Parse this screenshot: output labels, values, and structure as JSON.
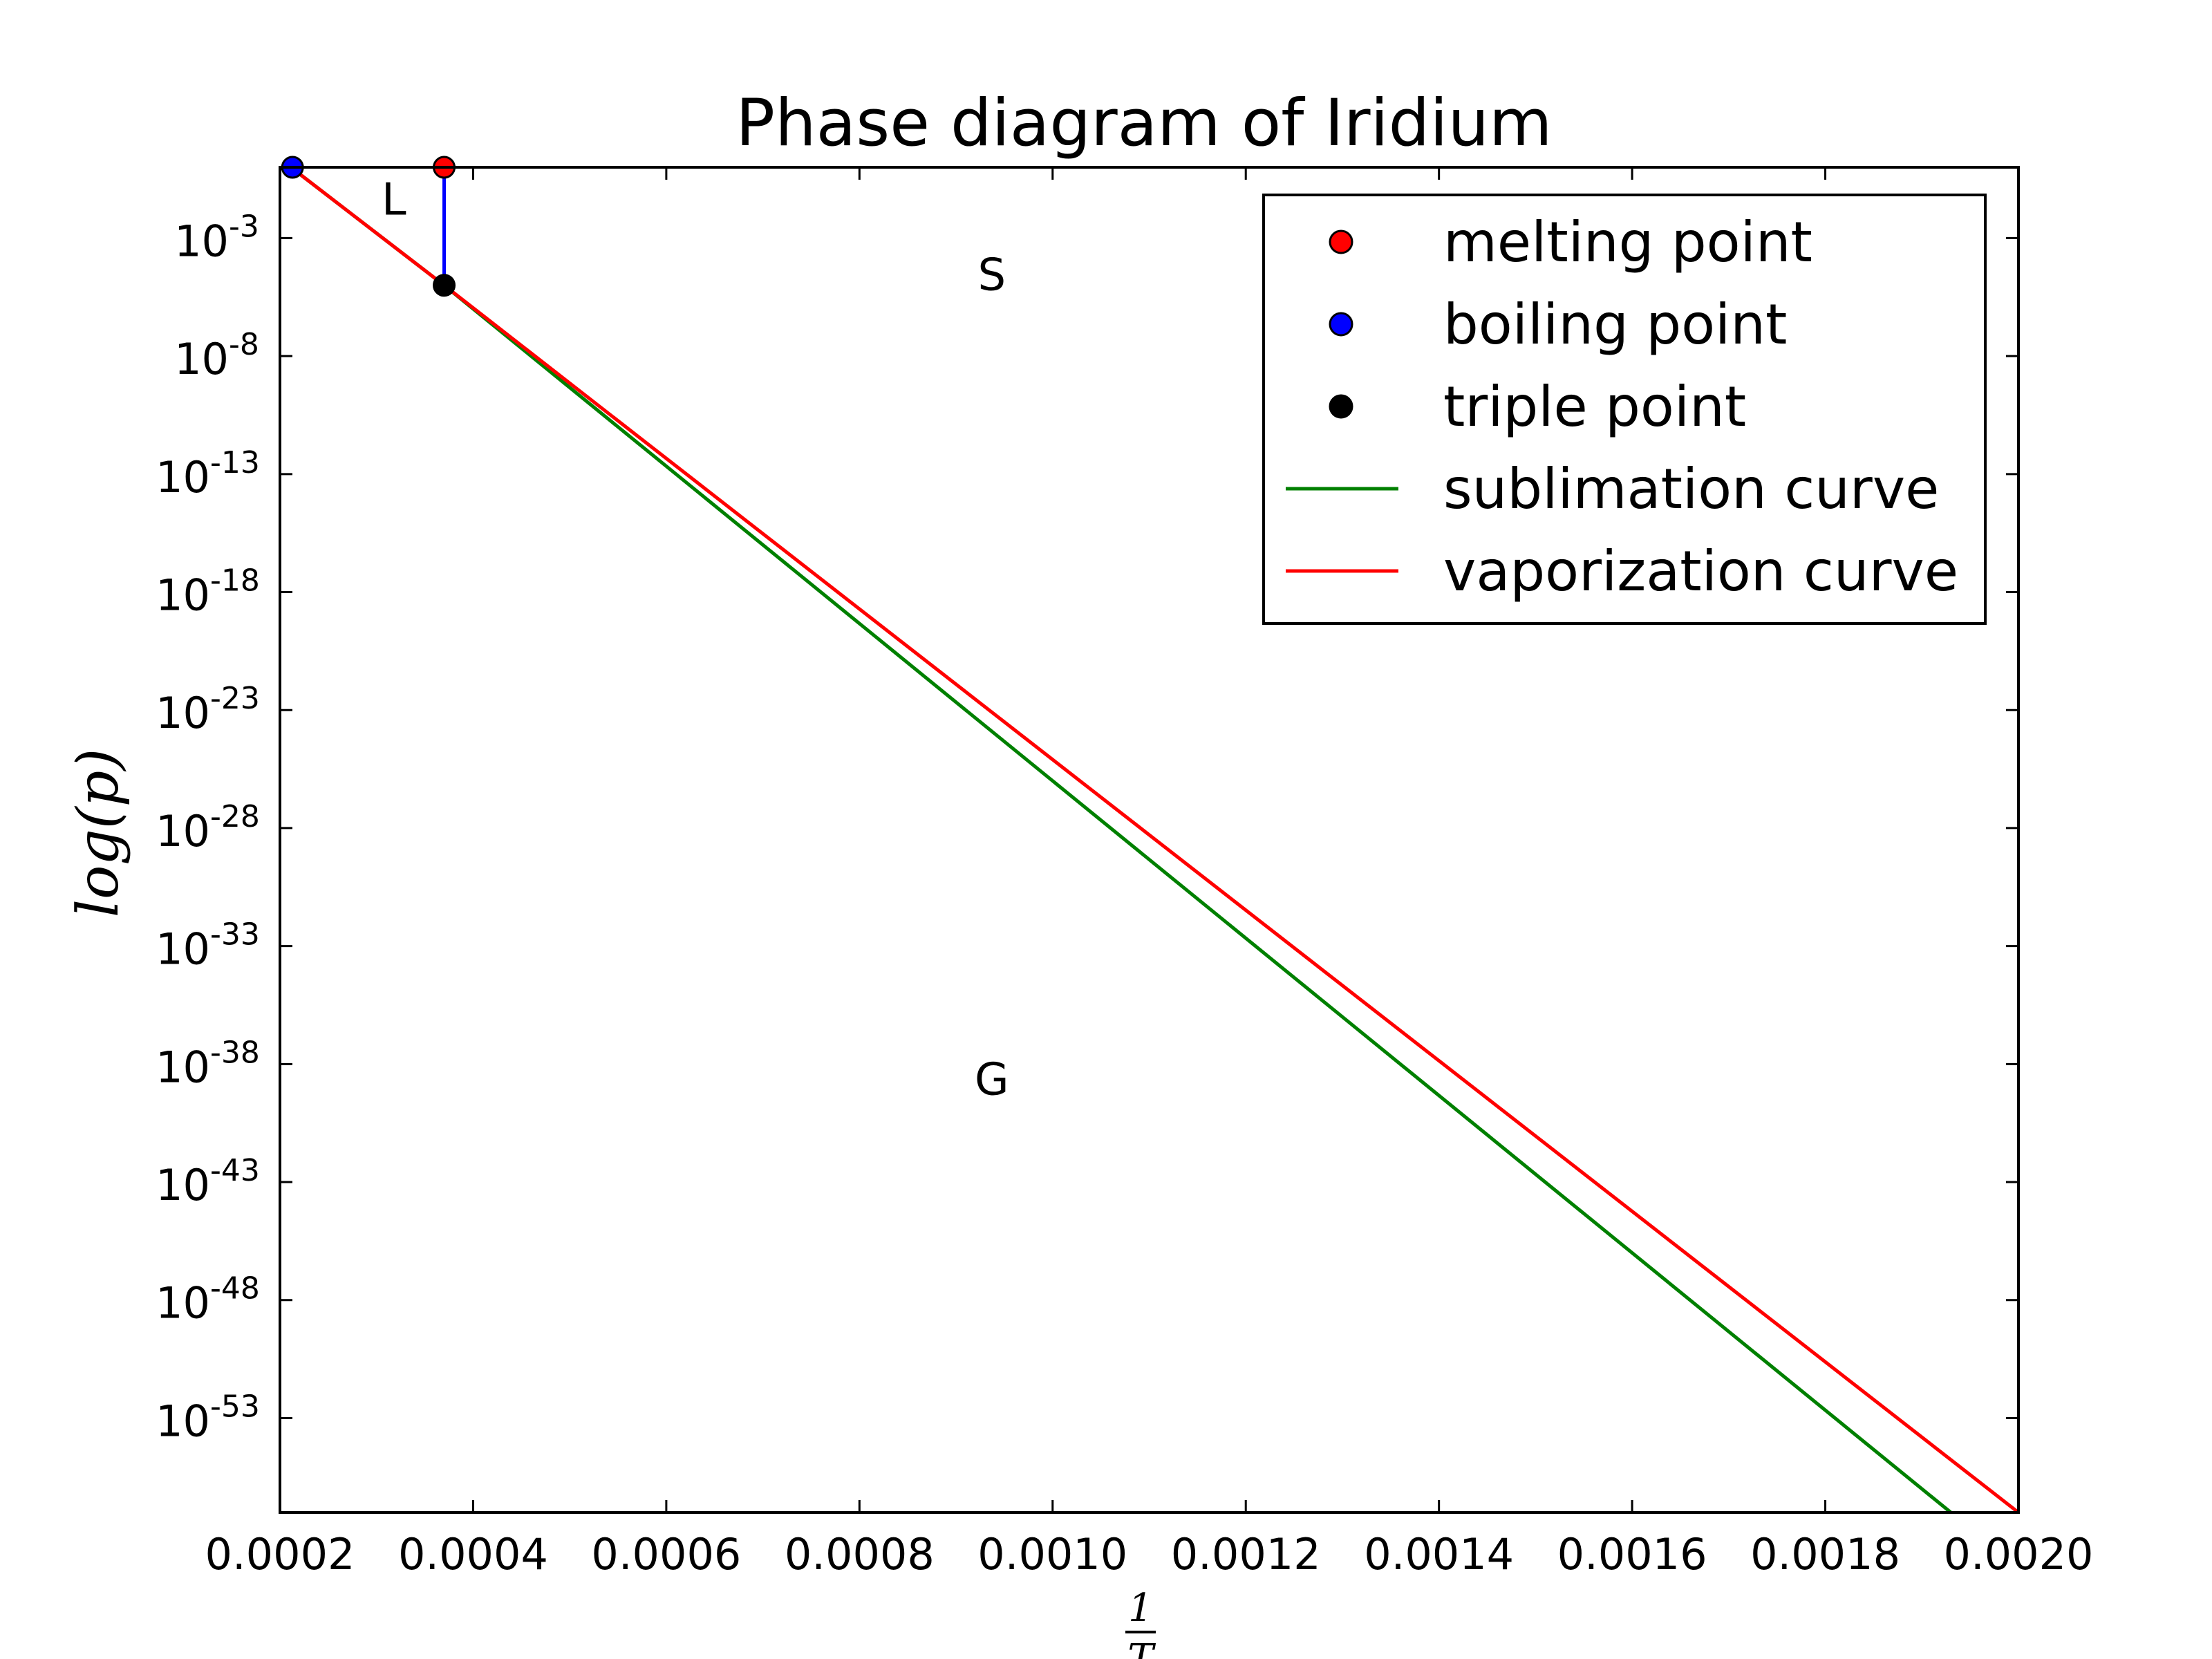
{
  "chart_data": {
    "type": "line",
    "title": "Phase diagram of Iridium",
    "xlabel": {
      "numerator": "1",
      "denominator": "T"
    },
    "ylabel": "log(p)",
    "xlim": [
      0.0002,
      0.002
    ],
    "ylim_log10": [
      -57,
      0
    ],
    "y_log_scale": true,
    "x_ticks": [
      "0.0002",
      "0.0004",
      "0.0006",
      "0.0008",
      "0.0010",
      "0.0012",
      "0.0014",
      "0.0016",
      "0.0018",
      "0.0020"
    ],
    "y_ticks": [
      {
        "base": "10",
        "exp": "-3",
        "value": -3
      },
      {
        "base": "10",
        "exp": "-8",
        "value": -8
      },
      {
        "base": "10",
        "exp": "-13",
        "value": -13
      },
      {
        "base": "10",
        "exp": "-18",
        "value": -18
      },
      {
        "base": "10",
        "exp": "-23",
        "value": -23
      },
      {
        "base": "10",
        "exp": "-28",
        "value": -28
      },
      {
        "base": "10",
        "exp": "-33",
        "value": -33
      },
      {
        "base": "10",
        "exp": "-38",
        "value": -38
      },
      {
        "base": "10",
        "exp": "-43",
        "value": -43
      },
      {
        "base": "10",
        "exp": "-48",
        "value": -48
      },
      {
        "base": "10",
        "exp": "-53",
        "value": -53
      }
    ],
    "series": [
      {
        "name": "sublimation curve",
        "color": "#008000",
        "x": [
          0.000205,
          0.00037,
          0.00193
        ],
        "log10_y": [
          0.2,
          -5.0,
          -57.0
        ]
      },
      {
        "name": "vaporization curve",
        "color": "#ff0000",
        "x": [
          0.000205,
          0.00037,
          0.002
        ],
        "log10_y": [
          0.2,
          -5.0,
          -57.0
        ]
      },
      {
        "name": "",
        "color": "#0000ff",
        "x": [
          0.00037,
          0.00037
        ],
        "log10_y": [
          0.0,
          -5.0
        ]
      }
    ],
    "points": [
      {
        "name": "melting point",
        "color": "#ff0000",
        "x": 0.00037,
        "log10_y": 0.0
      },
      {
        "name": "boiling point",
        "color": "#0000ff",
        "x": 0.000213,
        "log10_y": 0.0
      },
      {
        "name": "triple point",
        "color": "#000000",
        "x": 0.00037,
        "log10_y": -5.0
      }
    ],
    "regions": [
      {
        "label": "L",
        "x": 0.000318,
        "log10_y": -2.0
      },
      {
        "label": "S",
        "x": 0.000937,
        "log10_y": -5.2
      },
      {
        "label": "G",
        "x": 0.000937,
        "log10_y": -39.3
      }
    ],
    "legend": {
      "position": "top-right",
      "entries": [
        {
          "label": "melting point",
          "kind": "marker",
          "color": "#ff0000"
        },
        {
          "label": "boiling point",
          "kind": "marker",
          "color": "#0000ff"
        },
        {
          "label": "triple point",
          "kind": "marker",
          "color": "#000000"
        },
        {
          "label": "sublimation curve",
          "kind": "line",
          "color": "#008000"
        },
        {
          "label": "vaporization curve",
          "kind": "line",
          "color": "#ff0000"
        }
      ]
    },
    "grid": false
  }
}
